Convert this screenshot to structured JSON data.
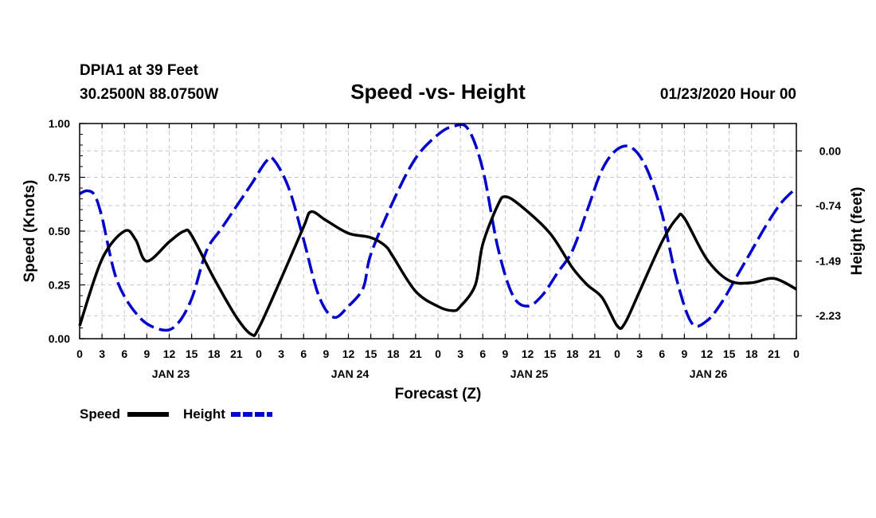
{
  "header": {
    "station": "DPIA1 at 39 Feet",
    "coords": "30.2500N 88.0750W",
    "title": "Speed -vs- Height",
    "datetime": "01/23/2020 Hour 00"
  },
  "chart_data": {
    "type": "line",
    "title": "Speed -vs- Height",
    "xlabel": "Forecast (Z)",
    "ylabel": "Speed (Knots)",
    "y2label": "Height (feet)",
    "x_range_hours": [
      0,
      96
    ],
    "ylim": [
      0,
      1
    ],
    "y2lim": [
      -2.54,
      0.37
    ],
    "y_ticks": [
      0,
      0.25,
      0.5,
      0.75,
      1.0
    ],
    "y_tick_labels": [
      "0.00",
      "0.25",
      "0.50",
      "0.75",
      "1.00"
    ],
    "y2_ticks": [
      0.0,
      -0.74,
      -1.49,
      -2.23
    ],
    "y2_tick_labels": [
      "0.00",
      "-0.74",
      "-1.49",
      "-2.23"
    ],
    "x_ticks_hours": [
      0,
      3,
      6,
      9,
      12,
      15,
      18,
      21,
      24,
      27,
      30,
      33,
      36,
      39,
      42,
      45,
      48,
      51,
      54,
      57,
      60,
      63,
      66,
      69,
      72,
      75,
      78,
      81,
      84,
      87,
      90,
      93,
      96
    ],
    "x_tick_labels": [
      "0",
      "3",
      "6",
      "9",
      "12",
      "15",
      "18",
      "21",
      "0",
      "3",
      "6",
      "9",
      "12",
      "15",
      "18",
      "21",
      "0",
      "3",
      "6",
      "9",
      "12",
      "15",
      "18",
      "21",
      "0",
      "3",
      "6",
      "9",
      "12",
      "15",
      "18",
      "21",
      "0"
    ],
    "day_labels": [
      {
        "hour": 12,
        "label": "JAN 23"
      },
      {
        "hour": 36,
        "label": "JAN 24"
      },
      {
        "hour": 60,
        "label": "JAN 25"
      },
      {
        "hour": 84,
        "label": "JAN 26"
      }
    ],
    "grid": true,
    "series": [
      {
        "name": "Speed",
        "axis": "left",
        "color": "#000000",
        "dash": "solid",
        "points": [
          [
            0,
            0.06
          ],
          [
            3,
            0.37
          ],
          [
            6,
            0.5
          ],
          [
            7.5,
            0.46
          ],
          [
            9,
            0.36
          ],
          [
            12,
            0.45
          ],
          [
            14,
            0.5
          ],
          [
            15,
            0.48
          ],
          [
            18,
            0.28
          ],
          [
            21,
            0.1
          ],
          [
            23,
            0.02
          ],
          [
            24,
            0.05
          ],
          [
            27,
            0.28
          ],
          [
            30,
            0.52
          ],
          [
            31,
            0.59
          ],
          [
            33,
            0.55
          ],
          [
            36,
            0.49
          ],
          [
            39,
            0.47
          ],
          [
            41,
            0.43
          ],
          [
            42,
            0.38
          ],
          [
            45,
            0.22
          ],
          [
            48,
            0.15
          ],
          [
            50,
            0.13
          ],
          [
            51,
            0.15
          ],
          [
            53,
            0.25
          ],
          [
            54,
            0.44
          ],
          [
            56,
            0.62
          ],
          [
            57,
            0.66
          ],
          [
            59,
            0.62
          ],
          [
            63,
            0.49
          ],
          [
            66,
            0.33
          ],
          [
            68,
            0.25
          ],
          [
            70,
            0.19
          ],
          [
            72,
            0.06
          ],
          [
            73,
            0.07
          ],
          [
            75,
            0.22
          ],
          [
            78,
            0.45
          ],
          [
            80,
            0.56
          ],
          [
            81,
            0.56
          ],
          [
            84,
            0.37
          ],
          [
            87,
            0.27
          ],
          [
            90,
            0.26
          ],
          [
            93,
            0.28
          ],
          [
            96,
            0.23
          ]
        ]
      },
      {
        "name": "Height",
        "axis": "right",
        "color": "#0000cc",
        "dash": "dashed",
        "points": [
          [
            0,
            -0.58
          ],
          [
            1,
            -0.54
          ],
          [
            2,
            -0.6
          ],
          [
            3,
            -0.9
          ],
          [
            5,
            -1.75
          ],
          [
            8,
            -2.25
          ],
          [
            11,
            -2.42
          ],
          [
            13,
            -2.35
          ],
          [
            15,
            -2.0
          ],
          [
            17,
            -1.35
          ],
          [
            19,
            -1.05
          ],
          [
            21,
            -0.75
          ],
          [
            23,
            -0.45
          ],
          [
            25,
            -0.14
          ],
          [
            26,
            -0.12
          ],
          [
            28,
            -0.5
          ],
          [
            30,
            -1.2
          ],
          [
            32,
            -1.95
          ],
          [
            34,
            -2.25
          ],
          [
            36,
            -2.1
          ],
          [
            38,
            -1.85
          ],
          [
            39,
            -1.4
          ],
          [
            42,
            -0.68
          ],
          [
            45,
            -0.1
          ],
          [
            48,
            0.22
          ],
          [
            50,
            0.33
          ],
          [
            52,
            0.3
          ],
          [
            54,
            -0.25
          ],
          [
            56,
            -1.3
          ],
          [
            58,
            -1.95
          ],
          [
            60,
            -2.1
          ],
          [
            62,
            -1.95
          ],
          [
            64,
            -1.65
          ],
          [
            66,
            -1.35
          ],
          [
            68,
            -0.8
          ],
          [
            70,
            -0.25
          ],
          [
            72,
            0.02
          ],
          [
            74,
            0.04
          ],
          [
            76,
            -0.25
          ],
          [
            78,
            -0.85
          ],
          [
            80,
            -1.75
          ],
          [
            82,
            -2.33
          ],
          [
            84,
            -2.3
          ],
          [
            86,
            -2.05
          ],
          [
            88,
            -1.7
          ],
          [
            90,
            -1.35
          ],
          [
            92,
            -1.0
          ],
          [
            94,
            -0.7
          ],
          [
            96,
            -0.5
          ]
        ]
      }
    ]
  },
  "legend": {
    "speed_label": "Speed",
    "height_label": "Height"
  }
}
